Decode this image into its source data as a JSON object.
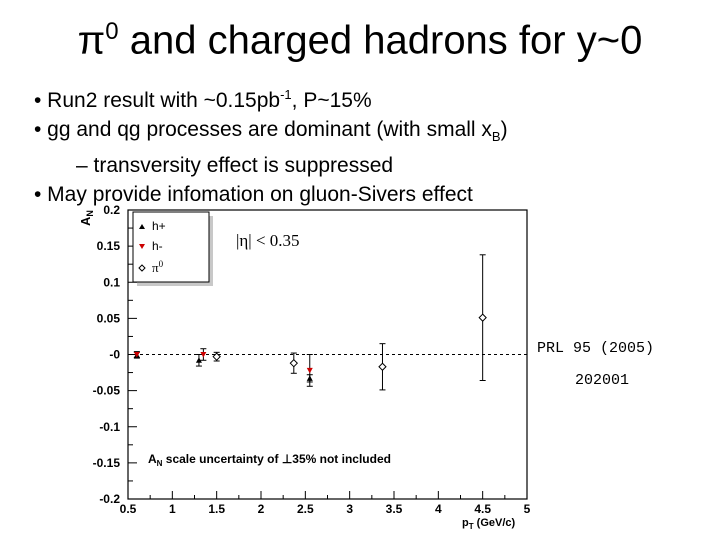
{
  "slide": {
    "title_symbol": "π",
    "title_sup": "0",
    "title_rest": " and charged hadrons for y~0",
    "bullets": [
      {
        "text_a": "• Run2 result with ~0.15pb",
        "sup": "-1",
        "text_b": ", P~15%"
      },
      {
        "text_a": "• gg and qg processes are dominant (with small x",
        "sub": "B",
        "text_b": ")"
      },
      {
        "text_a": "– transversity effect is suppressed"
      },
      {
        "text_a": "• May provide infomation on gluon-Sivers effect"
      }
    ],
    "reference_line1": "PRL 95 (2005)",
    "reference_line2": "202001"
  },
  "chart_data": {
    "type": "scatter",
    "ylabel": "A",
    "ylabel_sub": "N",
    "xlabel": "p",
    "xlabel_sub": "T",
    "xlabel_unit": " (GeV/c)",
    "xlim": [
      0.5,
      5.0
    ],
    "ylim": [
      -0.2,
      0.2
    ],
    "x_ticks": [
      "0.5",
      "1",
      "1.5",
      "2",
      "2.5",
      "3",
      "3.5",
      "4",
      "4.5",
      "5"
    ],
    "x_tick_values": [
      0.5,
      1,
      1.5,
      2,
      2.5,
      3,
      3.5,
      4,
      4.5,
      5
    ],
    "y_ticks": [
      "0.2",
      "0.15",
      "0.1",
      "0.05",
      "-0",
      "-0.05",
      "-0.1",
      "-0.15",
      "-0.2"
    ],
    "y_tick_values": [
      0.2,
      0.15,
      0.1,
      0.05,
      0,
      -0.05,
      -0.1,
      -0.15,
      -0.2
    ],
    "zero_line": "dashed",
    "grid": false,
    "legend_position": "top-left",
    "legend": [
      {
        "label": "h+",
        "marker": "triangle-up",
        "color": "#000000"
      },
      {
        "label": "h-",
        "marker": "triangle-down",
        "color": "#cc0000"
      },
      {
        "label": "π",
        "label_sup": "0",
        "marker": "open-diamond",
        "color": "#000000"
      }
    ],
    "annotation_eta": "|η| < 0.35",
    "annotation_scale": {
      "text_a": "A",
      "sub": "N",
      "text_b": " scale uncertainty of ",
      "symbol": "⊥",
      "text_c": "35% not included"
    },
    "series": [
      {
        "name": "h+",
        "marker": "triangle-up",
        "color": "#000000",
        "points": [
          {
            "x": 0.6,
            "y": -0.001,
            "err": 0.004
          },
          {
            "x": 1.3,
            "y": -0.008,
            "err": 0.008
          },
          {
            "x": 2.55,
            "y": -0.033,
            "err": 0.005
          }
        ]
      },
      {
        "name": "h-",
        "marker": "triangle-down",
        "color": "#cc0000",
        "points": [
          {
            "x": 0.6,
            "y": 0.0,
            "err": 0.004
          },
          {
            "x": 1.35,
            "y": 0.0,
            "err": 0.008
          },
          {
            "x": 2.55,
            "y": -0.022,
            "err": 0.022
          }
        ]
      },
      {
        "name": "π0",
        "marker": "open-diamond",
        "color": "#000000",
        "points": [
          {
            "x": 1.5,
            "y": -0.003,
            "err": 0.006
          },
          {
            "x": 2.37,
            "y": -0.012,
            "err": 0.014
          },
          {
            "x": 3.37,
            "y": -0.017,
            "err": 0.032
          },
          {
            "x": 4.5,
            "y": 0.051,
            "err": 0.087
          }
        ]
      }
    ]
  }
}
